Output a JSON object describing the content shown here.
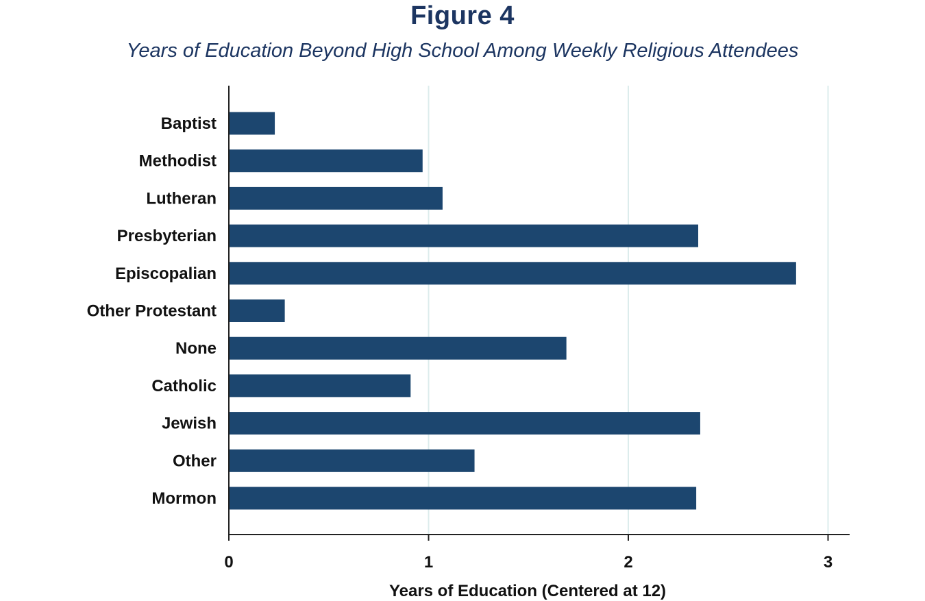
{
  "figure_label": "Figure 4",
  "chart_data": {
    "type": "bar",
    "orientation": "horizontal",
    "title": "Figure 4",
    "subtitle": "Years of Education Beyond High School Among Weekly Religious Attendees",
    "xlabel": "Years of Education (Centered at 12)",
    "ylabel": "",
    "categories": [
      "Baptist",
      "Methodist",
      "Lutheran",
      "Presbyterian",
      "Episcopalian",
      "Other Protestant",
      "None",
      "Catholic",
      "Jewish",
      "Other",
      "Mormon"
    ],
    "values": [
      0.23,
      0.97,
      1.07,
      2.35,
      2.84,
      0.28,
      1.69,
      0.91,
      2.36,
      1.23,
      2.34
    ],
    "xlim": [
      0,
      3.1
    ],
    "xticks": [
      0,
      1,
      2,
      3
    ],
    "xtick_labels": [
      "0",
      "1",
      "2",
      "3"
    ],
    "grid": "vertical",
    "legend": "none",
    "colors": {
      "bar": "#1c466f",
      "grid": "#dcecec",
      "axis": "#222222",
      "title": "#1c3561"
    }
  }
}
